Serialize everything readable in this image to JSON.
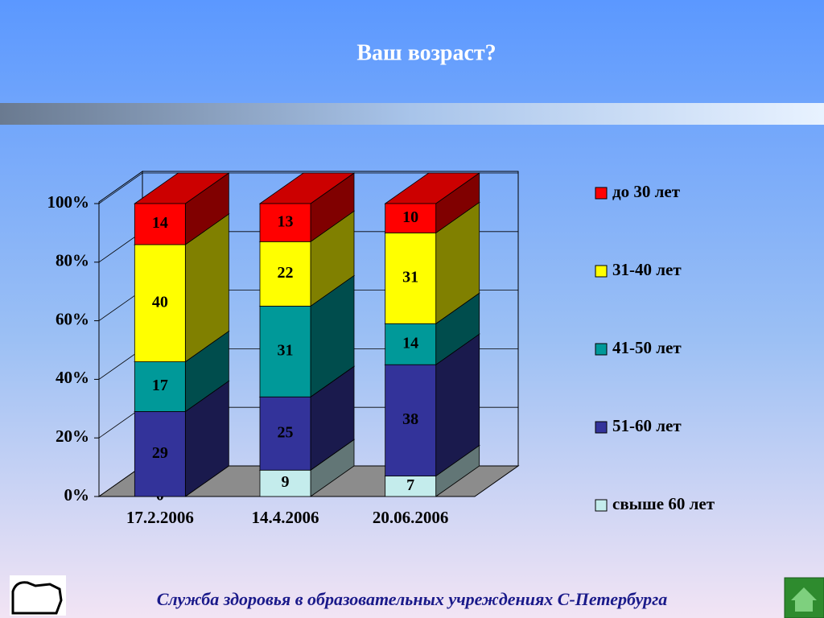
{
  "header": {
    "title": "Ваш возраст?"
  },
  "chart_data": {
    "type": "bar3d-stacked",
    "categories": [
      "17.2.2006",
      "14.4.2006",
      "20.06.2006"
    ],
    "series": [
      {
        "name": "свыше 60 лет",
        "color": "#c4ecec",
        "values": [
          0,
          9,
          7
        ]
      },
      {
        "name": "51-60 лет",
        "color": "#33339a",
        "values": [
          29,
          25,
          38
        ]
      },
      {
        "name": "41-50 лет",
        "color": "#009999",
        "values": [
          17,
          31,
          14
        ]
      },
      {
        "name": "31-40 лет",
        "color": "#ffff00",
        "values": [
          40,
          22,
          31
        ]
      },
      {
        "name": "до 30 лет",
        "color": "#ff0000",
        "values": [
          14,
          13,
          10
        ]
      }
    ],
    "ylim": [
      0,
      100
    ],
    "yticks": [
      {
        "value": 0,
        "label": "0%"
      },
      {
        "value": 20,
        "label": "20%"
      },
      {
        "value": 40,
        "label": "40%"
      },
      {
        "value": 60,
        "label": "60%"
      },
      {
        "value": 80,
        "label": "80%"
      },
      {
        "value": 100,
        "label": "100%"
      }
    ],
    "grid": true
  },
  "footer": {
    "text": "Служба здоровья в образовательных учреждениях С-Петербурга"
  }
}
